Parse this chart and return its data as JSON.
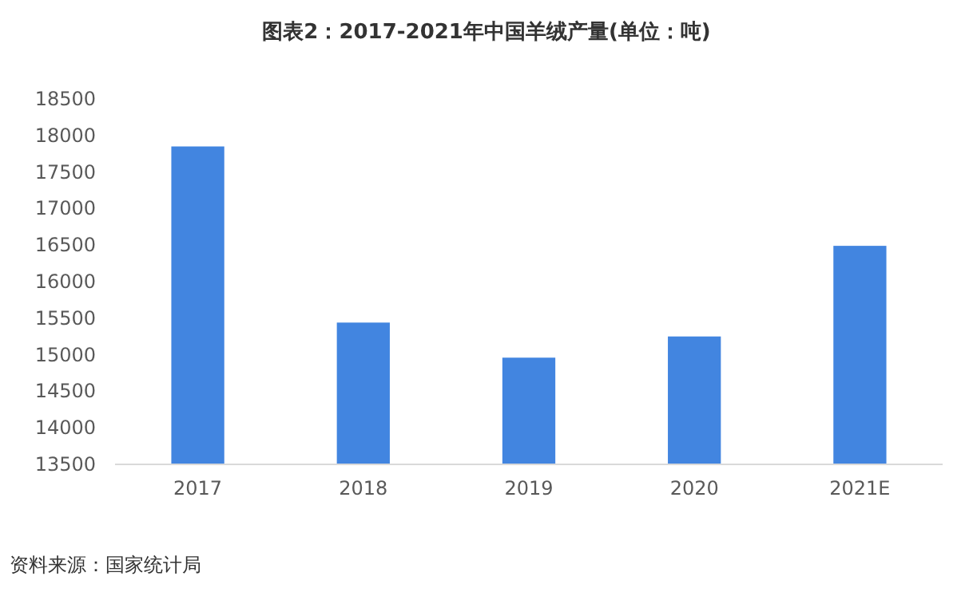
{
  "chart_data": {
    "type": "bar",
    "title": "图表2：2017-2021年中国羊绒产量(单位：吨)",
    "categories": [
      "2017",
      "2018",
      "2019",
      "2020",
      "2021E"
    ],
    "values": [
      17850,
      15440,
      14960,
      15250,
      16490
    ],
    "color": "#4285e0",
    "ylim": [
      13500,
      18500
    ],
    "yticks": [
      13500,
      14000,
      14500,
      15000,
      15500,
      16000,
      16500,
      17000,
      17500,
      18000,
      18500
    ],
    "grid": false,
    "annotations": [
      "资料来源：国家统计局"
    ]
  }
}
